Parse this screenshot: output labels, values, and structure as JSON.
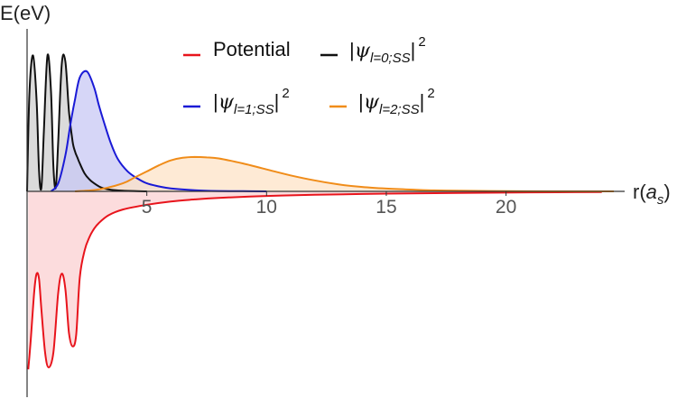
{
  "chart_data": {
    "type": "area",
    "ylabel": "E(eV)",
    "xlabel_prefix": "r(",
    "xlabel_var": "a",
    "xlabel_sub": "s",
    "xlabel_suffix": ")",
    "xlim": [
      0,
      24.5
    ],
    "ylim": [
      -1.0,
      0.75
    ],
    "x_ticks": [
      5,
      10,
      15,
      20
    ],
    "x_tick_labels": [
      "5",
      "10",
      "15",
      "20"
    ],
    "grid": false,
    "legend_position": "top",
    "series": [
      {
        "id": "potential",
        "name": "Potential",
        "color": "#e8141c",
        "fill": "#fbd0d2",
        "x": [
          0.05,
          0.15,
          0.3,
          0.4,
          0.5,
          0.6,
          0.75,
          0.9,
          1.1,
          1.3,
          1.45,
          1.6,
          1.75,
          1.9,
          2.05,
          2.2,
          2.4,
          2.6,
          2.8,
          3.0,
          3.4,
          4.0,
          5.0,
          6.0,
          7.0,
          8.0,
          10.0,
          12.0,
          15.0,
          18.0,
          21.0,
          24.0
        ],
        "y": [
          -0.93,
          -0.78,
          -0.52,
          -0.43,
          -0.46,
          -0.62,
          -0.84,
          -0.92,
          -0.84,
          -0.53,
          -0.43,
          -0.51,
          -0.74,
          -0.81,
          -0.75,
          -0.45,
          -0.31,
          -0.24,
          -0.195,
          -0.165,
          -0.125,
          -0.095,
          -0.07,
          -0.053,
          -0.042,
          -0.034,
          -0.024,
          -0.018,
          -0.012,
          -0.008,
          -0.005,
          -0.004
        ]
      },
      {
        "id": "psi-l0",
        "name_prefix": "|",
        "name_var": "ψ",
        "name_sub": "l=0;SS",
        "name_suffix": "|",
        "name_sup": "2",
        "color": "#111111",
        "fill": "#cfcfcf",
        "x": [
          0.0,
          0.1,
          0.25,
          0.4,
          0.5,
          0.6,
          0.7,
          0.85,
          1.0,
          1.1,
          1.2,
          1.3,
          1.45,
          1.6,
          1.75,
          1.9,
          2.0,
          2.1,
          2.2,
          2.4,
          2.6,
          2.8,
          3.0,
          3.2,
          3.5,
          4.0,
          5.0
        ],
        "y": [
          0.0,
          0.5,
          0.68,
          0.45,
          0.1,
          0.02,
          0.3,
          0.68,
          0.5,
          0.12,
          0.02,
          0.25,
          0.64,
          0.65,
          0.4,
          0.25,
          0.2,
          0.17,
          0.14,
          0.09,
          0.06,
          0.04,
          0.025,
          0.015,
          0.008,
          0.003,
          0.0
        ]
      },
      {
        "id": "psi-l1",
        "name_prefix": "|",
        "name_var": "ψ",
        "name_sub": "l=1;SS",
        "name_suffix": "|",
        "name_sup": "2",
        "color": "#1a1ad6",
        "fill": "#c8c8f4",
        "x": [
          1.0,
          1.3,
          1.6,
          1.8,
          2.0,
          2.2,
          2.5,
          2.8,
          3.0,
          3.2,
          3.5,
          3.8,
          4.2,
          4.6,
          5.0,
          5.5,
          6.0,
          7.0,
          8.0,
          9.0,
          10.0
        ],
        "y": [
          0.0,
          0.04,
          0.18,
          0.33,
          0.46,
          0.57,
          0.6,
          0.52,
          0.43,
          0.35,
          0.24,
          0.16,
          0.1,
          0.065,
          0.04,
          0.025,
          0.015,
          0.006,
          0.002,
          0.001,
          0.0
        ]
      },
      {
        "id": "psi-l2",
        "name_prefix": "|",
        "name_var": "ψ",
        "name_sub": "l=2;SS",
        "name_suffix": "|",
        "name_sup": "2",
        "color": "#f08c19",
        "fill": "#fde3c7",
        "x": [
          2.0,
          3.0,
          4.0,
          4.5,
          5.0,
          5.5,
          6.0,
          6.5,
          7.0,
          7.5,
          8.0,
          9.0,
          10.0,
          11.0,
          12.0,
          13.0,
          14.0,
          15.0,
          16.0,
          17.0,
          18.0,
          20.0,
          22.0,
          24.5
        ],
        "y": [
          0.0,
          0.01,
          0.04,
          0.07,
          0.1,
          0.13,
          0.155,
          0.168,
          0.172,
          0.17,
          0.165,
          0.14,
          0.11,
          0.08,
          0.055,
          0.035,
          0.022,
          0.014,
          0.009,
          0.005,
          0.003,
          0.001,
          0.0,
          0.0
        ]
      }
    ]
  }
}
